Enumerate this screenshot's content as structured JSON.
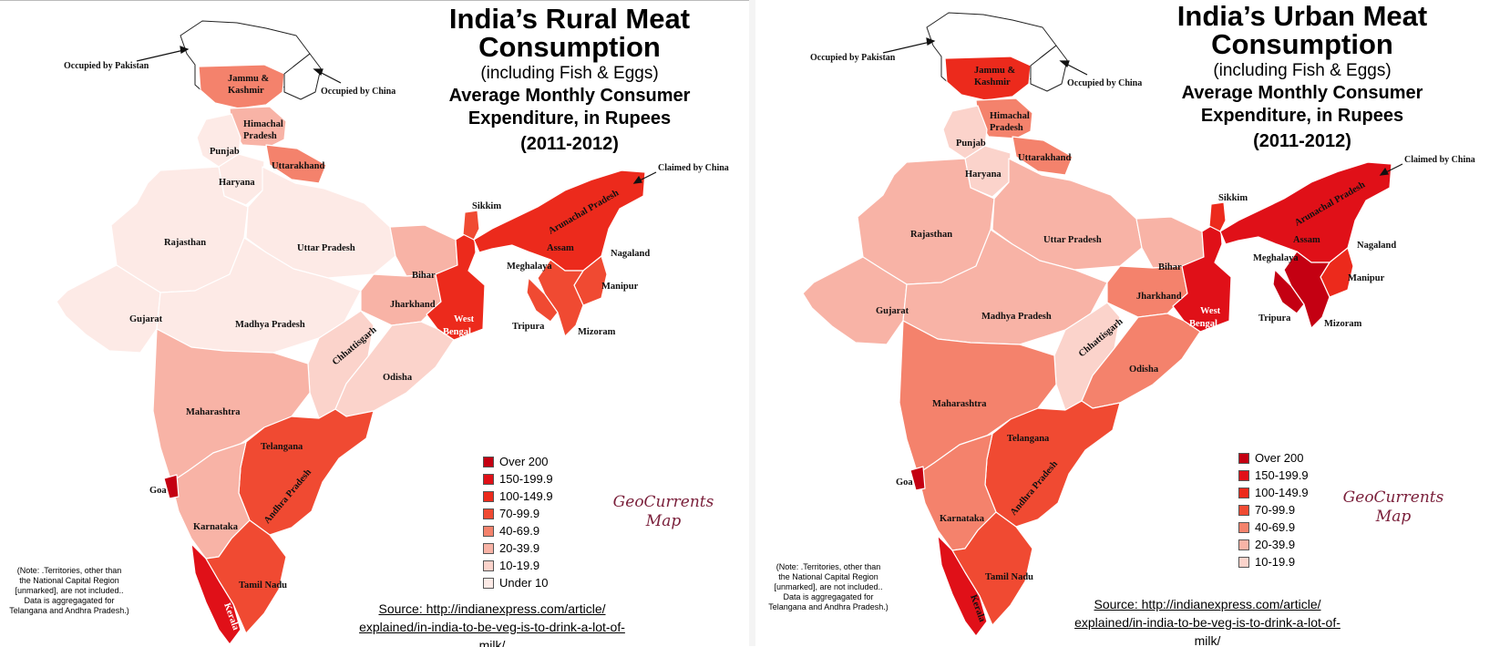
{
  "maps": [
    {
      "title": "India’s Rural Meat Consumption",
      "subtitle": "(including Fish & Eggs)",
      "heading": "Average Monthly Consumer Expenditure, in Rupees",
      "years": "(2011-2012)",
      "legend": [
        {
          "label": "Over 200",
          "color": "#c40012"
        },
        {
          "label": "150-199.9",
          "color": "#e01018"
        },
        {
          "label": "100-149.9",
          "color": "#ec2a1c"
        },
        {
          "label": "70-99.9",
          "color": "#f04a32"
        },
        {
          "label": "40-69.9",
          "color": "#f4826c"
        },
        {
          "label": "20-39.9",
          "color": "#f8b3a6"
        },
        {
          "label": "10-19.9",
          "color": "#fbd3cb"
        },
        {
          "label": "Under 10",
          "color": "#fdeae6"
        }
      ],
      "region_colors": {
        "jk": "#f4826c",
        "hp": "#f8b3a6",
        "punjab": "#fdeae6",
        "haryana": "#fdeae6",
        "uk": "#f4826c",
        "rajasthan": "#fdeae6",
        "up": "#fdeae6",
        "gujarat": "#fdeae6",
        "mp": "#fdeae6",
        "bihar": "#f8b3a6",
        "jharkhand": "#f8b3a6",
        "wb": "#ec2a1c",
        "chhattisgarh": "#fbd3cb",
        "odisha": "#fbd3cb",
        "maharashtra": "#f8b3a6",
        "telangana_ap": "#f04a32",
        "karnataka": "#f8b3a6",
        "goa": "#c40012",
        "kerala": "#e01018",
        "tn": "#f04a32",
        "sikkim": "#f04a32",
        "ne": "#ec2a1c",
        "mizoram": "#f04a32",
        "manipur": "#f04a32"
      },
      "labels": {
        "jk": "Jammu &",
        "jk2": "Kashmir",
        "hp": "Himachal",
        "hp2": "Pradesh",
        "punjab": "Punjab",
        "haryana": "Haryana",
        "uk": "Uttarakhand",
        "rajasthan": "Rajasthan",
        "up": "Uttar Pradesh",
        "gujarat": "Gujarat",
        "mp": "Madhya Pradesh",
        "bihar": "Bihar",
        "jharkhand": "Jharkhand",
        "wb": "West",
        "wb2": "Bengal",
        "chhattisgarh": "Chhattisgarh",
        "odisha": "Odisha",
        "maharashtra": "Maharashtra",
        "telangana": "Telangana",
        "ap": "Andhra Pradesh",
        "karnataka": "Karnataka",
        "goa": "Goa",
        "kerala": "Kerala",
        "tn": "Tamil Nadu",
        "sikkim": "Sikkim",
        "arunachal": "Arunachal Pradesh",
        "assam": "Assam",
        "meghalaya": "Meghalaya",
        "nagaland": "Nagaland",
        "manipur": "Manipur",
        "tripura": "Tripura",
        "mizoram": "Mizoram"
      },
      "annotations": {
        "pakistan": "Occupied by Pakistan",
        "china_occ": "Occupied by China",
        "china_claim": "Claimed by China"
      },
      "brand": [
        "GeoCurrents",
        "Map"
      ],
      "note": [
        "(Note: .Territories, other than",
        "the National Capital Region",
        "[unmarked], are not included..",
        "Data is aggregagated for",
        "Telangana and Andhra Pradesh.)"
      ],
      "source": [
        "Source: http://indianexpress.com/article/",
        "explained/in-india-to-be-veg-is-to-drink-a-lot-of-",
        "milk/"
      ]
    },
    {
      "title": "India’s Urban Meat Consumption",
      "subtitle": "(including Fish & Eggs)",
      "heading": "Average Monthly Consumer Expenditure, in Rupees",
      "years": "(2011-2012)",
      "legend": [
        {
          "label": "Over 200",
          "color": "#c40012"
        },
        {
          "label": "150-199.9",
          "color": "#e01018"
        },
        {
          "label": "100-149.9",
          "color": "#ec2a1c"
        },
        {
          "label": "70-99.9",
          "color": "#f04a32"
        },
        {
          "label": "40-69.9",
          "color": "#f4826c"
        },
        {
          "label": "20-39.9",
          "color": "#f8b3a6"
        },
        {
          "label": "10-19.9",
          "color": "#fbd3cb"
        }
      ],
      "region_colors": {
        "jk": "#ec2a1c",
        "hp": "#f4826c",
        "punjab": "#fbd3cb",
        "haryana": "#fbd3cb",
        "uk": "#f4826c",
        "rajasthan": "#f8b3a6",
        "up": "#f8b3a6",
        "gujarat": "#f8b3a6",
        "mp": "#f8b3a6",
        "bihar": "#f8b3a6",
        "jharkhand": "#f4826c",
        "wb": "#e01018",
        "chhattisgarh": "#fbd3cb",
        "odisha": "#f4826c",
        "maharashtra": "#f4826c",
        "telangana_ap": "#f04a32",
        "karnataka": "#f4826c",
        "goa": "#c40012",
        "kerala": "#e01018",
        "tn": "#f04a32",
        "sikkim": "#ec2a1c",
        "ne": "#e01018",
        "mizoram": "#c40012",
        "manipur": "#ec2a1c"
      },
      "labels": {
        "jk": "Jammu &",
        "jk2": "Kashmir",
        "hp": "Himachal",
        "hp2": "Pradesh",
        "punjab": "Punjab",
        "haryana": "Haryana",
        "uk": "Uttarakhand",
        "rajasthan": "Rajasthan",
        "up": "Uttar Pradesh",
        "gujarat": "Gujarat",
        "mp": "Madhya Pradesh",
        "bihar": "Bihar",
        "jharkhand": "Jharkhand",
        "wb": "West",
        "wb2": "Bengal",
        "chhattisgarh": "Chhattisgarh",
        "odisha": "Odisha",
        "maharashtra": "Maharashtra",
        "telangana": "Telangana",
        "ap": "Andhra Pradesh",
        "karnataka": "Karnataka",
        "goa": "Goa",
        "kerala": "Kerala",
        "tn": "Tamil Nadu",
        "sikkim": "Sikkim",
        "arunachal": "Arunachal Pradesh",
        "assam": "Assam",
        "meghalaya": "Meghalaya",
        "nagaland": "Nagaland",
        "manipur": "Manipur",
        "tripura": "Tripura",
        "mizoram": "Mizoram"
      },
      "annotations": {
        "pakistan": "Occupied by Pakistan",
        "china_occ": "Occupied by China",
        "china_claim": "Claimed by China"
      },
      "brand": [
        "GeoCurrents",
        "Map"
      ],
      "note": [
        "(Note: .Territories, other than",
        "the National Capital Region",
        "[unmarked], are not included..",
        "Data is aggregagated for",
        "Telangana and Andhra Pradesh.)"
      ],
      "source": [
        "Source: http://indianexpress.com/article/",
        "explained/in-india-to-be-veg-is-to-drink-a-lot-of-",
        "milk/"
      ]
    }
  ]
}
